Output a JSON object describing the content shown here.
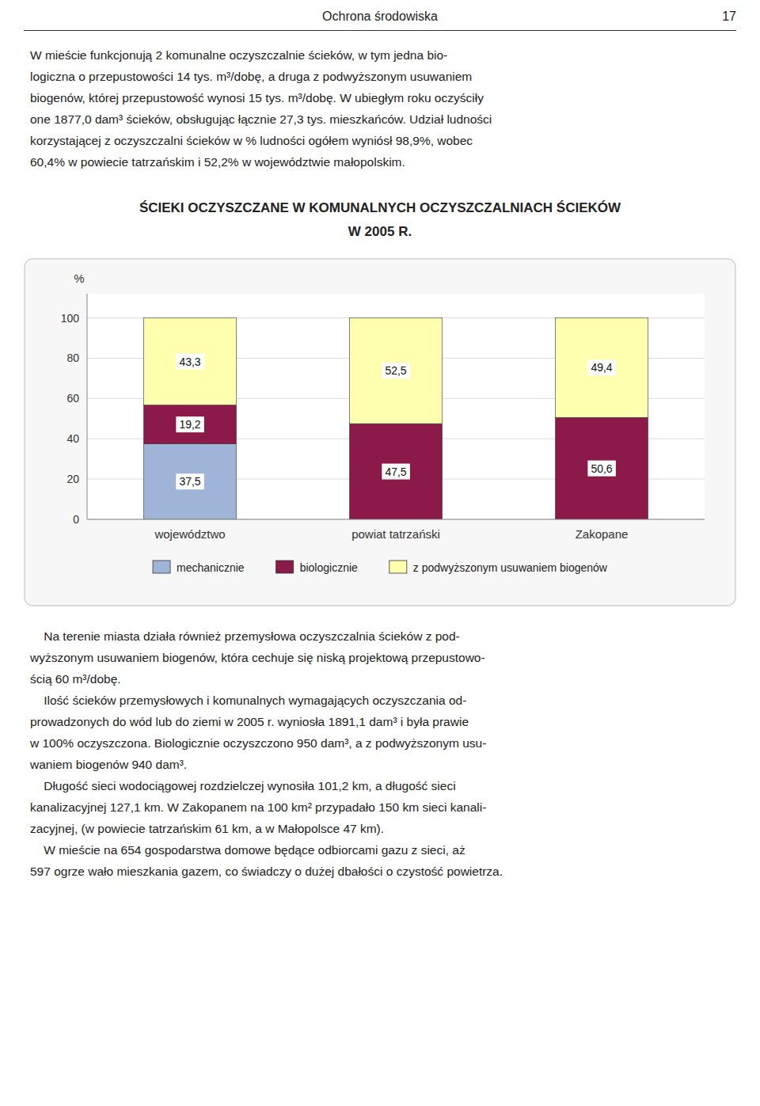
{
  "header": "Ochrona  środowiska",
  "page_number": "17",
  "text_above": [
    "W mieście funkcjonują 2 komunalne oczyszczalnie ścieków, w tym jedna bio-",
    "logiczna o przepustowości 14 tys. m³/dobę, a druga z podwyższonym usuwaniem",
    "biogenów, której przepustowość wynosi 15 tys. m³/dobę. W ubiegłym roku oczyściły",
    "one 1877,0 dam³ ścieków, obsługując łącznie 27,3 tys. mieszkańców. Udział ludności",
    "korzystającej z oczyszczalni ścieków w % ludności ogółem wyniósł 98,9%, wobec",
    "60,4% w powiecie tatrzańskim i 52,2% w województwie małopolskim."
  ],
  "text_below": [
    "    Na terenie miasta działa również przemysłowa oczyszczalnia ścieków z pod-",
    "wyższonym usuwaniem biogenów, która cechuje się niską projektową przepustowo-",
    "ścią 60 m³/dobę.",
    "    Ilość ścieków przemysłowych i komunalnych wymagających oczyszczania od-",
    "prowadzonych do wód lub do ziemi w 2005 r. wyniosła 1891,1 dam³ i była prawie",
    "w 100% oczyszczona. Biologicznie oczyszczono 950 dam³, a z podwyższonym usu-",
    "waniem biogenów 940 dam³.",
    "    Długość sieci wodociągowej rozdzielczej wynosiła 101,2 km, a długość sieci",
    "kanalizacyjnej 127,1 km. W Zakopanem na 100 km² przypadało 150 km sieci kanali-",
    "zacyjnej, (w powiecie tatrzańskim 61 km, a w Małopolsce 47 km).",
    "    W mieście na 654 gospodarstwa domowe będące odbiorcami gazu z sieci, aż",
    "597 ogrze wało mieszkania gazem, co świadczy o dużej dbałości o czystość powietrza."
  ],
  "chart_data": {
    "type": "bar",
    "stacked": true,
    "title": "ŚCIEKI OCZYSZCZANE W KOMUNALNYCH OCZYSZCZALNIACH ŚCIEKÓW",
    "subtitle": "W 2005 R.",
    "y_label": "%",
    "categories": [
      "województwo",
      "powiat tatrzański",
      "Zakopane"
    ],
    "series": [
      {
        "name": "mechanicznie",
        "color": "#A0B4D8",
        "values": [
          37.5,
          0.0,
          0.0
        ],
        "value_labels": [
          "37,5",
          null,
          null
        ]
      },
      {
        "name": "biologicznie",
        "color": "#8B1A4A",
        "values": [
          19.2,
          47.5,
          50.6
        ],
        "value_labels": [
          "19,2",
          "47,5",
          "50,6"
        ]
      },
      {
        "name": "z podwyższonym usuwaniem biogenów",
        "color": "#FFFFB0",
        "values": [
          43.3,
          52.5,
          49.4
        ],
        "value_labels": [
          "43,3",
          "52,5",
          "49,4"
        ]
      }
    ],
    "ylim": [
      0,
      112
    ],
    "yticks": [
      0,
      20,
      40,
      60,
      80,
      100
    ],
    "grid": true,
    "data_labels": true,
    "legend": "bottom"
  }
}
